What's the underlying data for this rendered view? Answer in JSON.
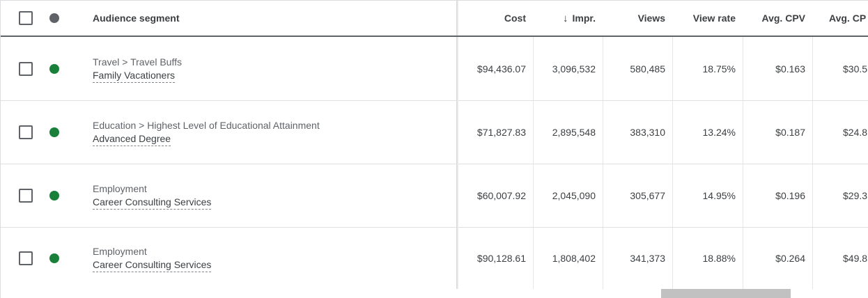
{
  "header": {
    "segment": "Audience segment",
    "cost": "Cost",
    "impr": "Impr.",
    "views": "Views",
    "view_rate": "View rate",
    "avg_cpv": "Avg. CPV",
    "avg_cpm": "Avg. CP",
    "sort_icon": "arrow-down-icon"
  },
  "colors": {
    "status_green": "#188038",
    "header_dot": "#5f6368"
  },
  "rows": [
    {
      "parent": "Travel > Travel Buffs",
      "name": "Family Vacationers",
      "cost": "$94,436.07",
      "impr": "3,096,532",
      "views": "580,485",
      "view_rate": "18.75%",
      "avg_cpv": "$0.163",
      "avg_cpm": "$30.5"
    },
    {
      "parent": "Education > Highest Level of Educational Attainment",
      "name": "Advanced Degree",
      "cost": "$71,827.83",
      "impr": "2,895,548",
      "views": "383,310",
      "view_rate": "13.24%",
      "avg_cpv": "$0.187",
      "avg_cpm": "$24.8"
    },
    {
      "parent": "Employment",
      "name": "Career Consulting Services",
      "cost": "$60,007.92",
      "impr": "2,045,090",
      "views": "305,677",
      "view_rate": "14.95%",
      "avg_cpv": "$0.196",
      "avg_cpm": "$29.3"
    },
    {
      "parent": "Employment",
      "name": "Career Consulting Services",
      "cost": "$90,128.61",
      "impr": "1,808,402",
      "views": "341,373",
      "view_rate": "18.88%",
      "avg_cpv": "$0.264",
      "avg_cpm": "$49.8"
    }
  ]
}
